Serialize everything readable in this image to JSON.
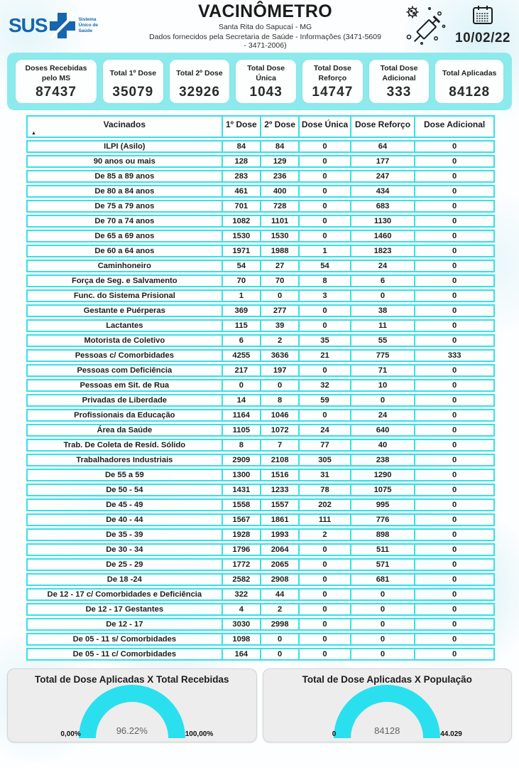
{
  "header": {
    "logo_text": "SUS",
    "logo_subtext": "Sistema Único de Saúde",
    "title": "VACINÔMETRO",
    "subtitle": "Santa Rita do Sapucaí - MG",
    "info": "Dados fornecidos pela Secretaria de Saúde - Informações (3471-5609 - 3471-2006)",
    "date": "10/02/22"
  },
  "summary_cards": [
    {
      "label": "Doses Recebidas pelo MS",
      "value": "87437"
    },
    {
      "label": "Total 1º Dose",
      "value": "35079"
    },
    {
      "label": "Total 2º Dose",
      "value": "32926"
    },
    {
      "label": "Total Dose Única",
      "value": "1043"
    },
    {
      "label": "Total Dose Reforço",
      "value": "14747"
    },
    {
      "label": "Total Dose Adicional",
      "value": "333"
    },
    {
      "label": "Total Aplicadas",
      "value": "84128"
    }
  ],
  "chart_data": [
    {
      "type": "table",
      "sort_indicator": "▲",
      "columns": [
        "Vacinados",
        "1º Dose",
        "2º Dose",
        "Dose Única",
        "Dose Reforço",
        "Dose Adicional"
      ],
      "rows": [
        {
          "label": "ILPI (Asilo)",
          "values": [
            84,
            84,
            0,
            64,
            0
          ]
        },
        {
          "label": "90 anos ou mais",
          "values": [
            128,
            129,
            0,
            177,
            0
          ]
        },
        {
          "label": "De 85 a 89 anos",
          "values": [
            283,
            236,
            0,
            247,
            0
          ]
        },
        {
          "label": "De 80 a 84 anos",
          "values": [
            461,
            400,
            0,
            434,
            0
          ]
        },
        {
          "label": "De 75 a 79 anos",
          "values": [
            701,
            728,
            0,
            683,
            0
          ]
        },
        {
          "label": "De 70 a 74 anos",
          "values": [
            1082,
            1101,
            0,
            1130,
            0
          ]
        },
        {
          "label": "De 65 a 69 anos",
          "values": [
            1530,
            1530,
            0,
            1460,
            0
          ]
        },
        {
          "label": "De 60 a 64 anos",
          "values": [
            1971,
            1988,
            1,
            1823,
            0
          ]
        },
        {
          "label": "Caminhoneiro",
          "values": [
            54,
            27,
            54,
            24,
            0
          ]
        },
        {
          "label": "Força de Seg. e Salvamento",
          "values": [
            70,
            70,
            8,
            6,
            0
          ]
        },
        {
          "label": "Func. do Sistema Prisional",
          "values": [
            1,
            0,
            3,
            0,
            0
          ]
        },
        {
          "label": "Gestante e Puérperas",
          "values": [
            369,
            277,
            0,
            38,
            0
          ]
        },
        {
          "label": "Lactantes",
          "values": [
            115,
            39,
            0,
            11,
            0
          ]
        },
        {
          "label": "Motorista de Coletivo",
          "values": [
            6,
            2,
            35,
            55,
            0
          ]
        },
        {
          "label": "Pessoas c/ Comorbidades",
          "values": [
            4255,
            3636,
            21,
            775,
            333
          ]
        },
        {
          "label": "Pessoas com Deficiência",
          "values": [
            217,
            197,
            0,
            71,
            0
          ]
        },
        {
          "label": "Pessoas em Sit. de Rua",
          "values": [
            0,
            0,
            32,
            10,
            0
          ]
        },
        {
          "label": "Privadas de Liberdade",
          "values": [
            14,
            8,
            59,
            0,
            0
          ]
        },
        {
          "label": "Profissionais da Educação",
          "values": [
            1164,
            1046,
            0,
            24,
            0
          ]
        },
        {
          "label": "Área da Saúde",
          "values": [
            1105,
            1072,
            24,
            640,
            0
          ]
        },
        {
          "label": "Trab. De Coleta de Resíd. Sólido",
          "values": [
            8,
            7,
            77,
            40,
            0
          ]
        },
        {
          "label": "Trabalhadores Industriais",
          "values": [
            2909,
            2108,
            305,
            238,
            0
          ]
        },
        {
          "label": "De 55 a 59",
          "values": [
            1300,
            1516,
            31,
            1290,
            0
          ]
        },
        {
          "label": "De 50 - 54",
          "values": [
            1431,
            1233,
            78,
            1075,
            0
          ]
        },
        {
          "label": "De 45 - 49",
          "values": [
            1558,
            1557,
            202,
            995,
            0
          ]
        },
        {
          "label": "De 40 - 44",
          "values": [
            1567,
            1861,
            111,
            776,
            0
          ]
        },
        {
          "label": "De 35 - 39",
          "values": [
            1928,
            1993,
            2,
            898,
            0
          ]
        },
        {
          "label": "De 30 - 34",
          "values": [
            1796,
            2064,
            0,
            511,
            0
          ]
        },
        {
          "label": "De 25 - 29",
          "values": [
            1772,
            2065,
            0,
            571,
            0
          ]
        },
        {
          "label": "De 18 -24",
          "values": [
            2582,
            2908,
            0,
            681,
            0
          ]
        },
        {
          "label": "De 12 - 17 c/ Comorbidades e Deficiência",
          "values": [
            322,
            44,
            0,
            0,
            0
          ]
        },
        {
          "label": "De 12 - 17 Gestantes",
          "values": [
            4,
            2,
            0,
            0,
            0
          ]
        },
        {
          "label": "De 12 - 17",
          "values": [
            3030,
            2998,
            0,
            0,
            0
          ]
        },
        {
          "label": "De 05 - 11 s/ Comorbidades",
          "values": [
            1098,
            0,
            0,
            0,
            0
          ]
        },
        {
          "label": "De 05 - 11 c/ Comorbidades",
          "values": [
            164,
            0,
            0,
            0,
            0
          ]
        }
      ]
    },
    {
      "type": "gauge",
      "title": "Total de Dose Aplicadas X Total Recebidas",
      "value": 96.22,
      "value_label": "96.22%",
      "min": 0,
      "max": 100,
      "min_label": "0,00%",
      "max_label": "100,00%"
    },
    {
      "type": "gauge",
      "title": "Total de Dose Aplicadas X População",
      "value": 84128,
      "value_label": "84128",
      "min": 0,
      "max": 44029,
      "min_label": "0",
      "max_label": "44.029"
    }
  ],
  "colors": {
    "accent_cyan": "#35e1e9",
    "band_cyan": "#8ceaed",
    "gauge_cyan": "#2ae0ee",
    "sus_blue": "#1566ae",
    "panel_gray": "#ededee",
    "text_dark": "#1d1d1d"
  }
}
